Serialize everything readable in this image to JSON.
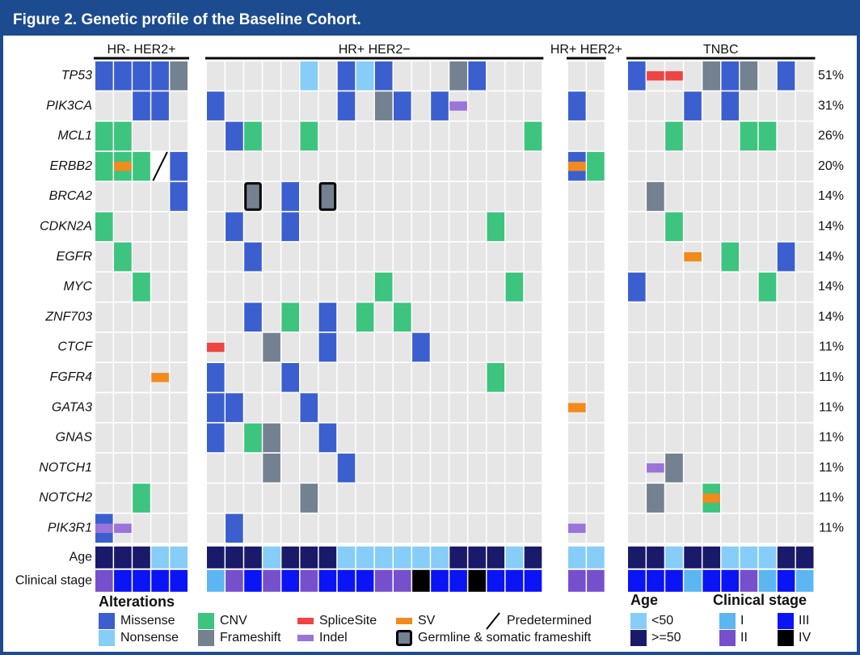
{
  "chart_data": {
    "type": "oncoprint",
    "title": "Figure 2. Genetic profile of the Baseline Cohort.",
    "genes": [
      "TP53",
      "PIK3CA",
      "MCL1",
      "ERBB2",
      "BRCA2",
      "CDKN2A",
      "EGFR",
      "MYC",
      "ZNF703",
      "CTCF",
      "FGFR4",
      "GATA3",
      "GNAS",
      "NOTCH1",
      "NOTCH2",
      "PIK3R1"
    ],
    "values": [
      51,
      31,
      26,
      20,
      14,
      14,
      14,
      14,
      14,
      11,
      11,
      11,
      11,
      11,
      11,
      11
    ],
    "value_labels": [
      "51%",
      "31%",
      "26%",
      "20%",
      "14%",
      "14%",
      "14%",
      "14%",
      "14%",
      "11%",
      "11%",
      "11%",
      "11%",
      "11%",
      "11%",
      "11%"
    ],
    "age_label": "Age",
    "stage_label": "Clinical stage",
    "groups": [
      {
        "name": "HR- HER2+",
        "age": [
          ">=50",
          ">=50",
          ">=50",
          "<50",
          "<50"
        ],
        "stage": [
          "II",
          "III",
          "III",
          "III",
          "III"
        ],
        "alterations": [
          [
            "Missense",
            "Missense",
            "Missense",
            "Missense",
            "Frameshift"
          ],
          [
            null,
            null,
            "Missense",
            "Missense",
            null
          ],
          [
            "CNV",
            "CNV",
            null,
            null,
            null
          ],
          [
            "CNV",
            [
              "CNV",
              "SV"
            ],
            "CNV",
            "Predetermined",
            "Missense"
          ],
          [
            null,
            null,
            null,
            null,
            "Missense"
          ],
          [
            "CNV",
            null,
            null,
            null,
            null
          ],
          [
            null,
            "CNV",
            null,
            null,
            null
          ],
          [
            null,
            null,
            "CNV",
            null,
            null
          ],
          [
            null,
            null,
            null,
            null,
            null
          ],
          [
            null,
            null,
            null,
            null,
            null
          ],
          [
            null,
            null,
            null,
            "SV",
            null
          ],
          [
            null,
            null,
            null,
            null,
            null
          ],
          [
            null,
            null,
            null,
            null,
            null
          ],
          [
            null,
            null,
            null,
            null,
            null
          ],
          [
            null,
            null,
            "CNV",
            null,
            null
          ],
          [
            [
              "Missense",
              "Indel"
            ],
            "Indel",
            null,
            null,
            null
          ]
        ]
      },
      {
        "name": "HR+ HER2−",
        "age": [
          ">=50",
          ">=50",
          ">=50",
          "<50",
          ">=50",
          ">=50",
          ">=50",
          "<50",
          "<50",
          "<50",
          "<50",
          "<50",
          "<50",
          ">=50",
          ">=50",
          ">=50",
          "<50",
          ">=50"
        ],
        "stage": [
          "I",
          "II",
          "III",
          "II",
          "III",
          "II",
          "III",
          "III",
          "III",
          "II",
          "II",
          "IV",
          "III",
          "III",
          "IV",
          "III",
          "III",
          "III"
        ],
        "alterations": [
          [
            null,
            null,
            null,
            null,
            null,
            "Nonsense",
            null,
            "Missense",
            "Nonsense",
            "Missense",
            null,
            null,
            null,
            "Frameshift",
            "Missense",
            null,
            null,
            null
          ],
          [
            "Missense",
            null,
            null,
            null,
            null,
            null,
            null,
            "Missense",
            null,
            "Frameshift",
            "Missense",
            null,
            "Missense",
            "Indel",
            null,
            null,
            null,
            null
          ],
          [
            null,
            "Missense",
            "CNV",
            null,
            null,
            "CNV",
            null,
            null,
            null,
            null,
            null,
            null,
            null,
            null,
            null,
            null,
            null,
            "CNV"
          ],
          [
            null,
            null,
            null,
            null,
            null,
            null,
            null,
            null,
            null,
            null,
            null,
            null,
            null,
            null,
            null,
            null,
            null,
            null
          ],
          [
            null,
            null,
            "Germline & somatic frameshift",
            null,
            "Missense",
            null,
            "Germline & somatic frameshift",
            null,
            null,
            null,
            null,
            null,
            null,
            null,
            null,
            null,
            null,
            null
          ],
          [
            null,
            "Missense",
            null,
            null,
            "Missense",
            null,
            null,
            null,
            null,
            null,
            null,
            null,
            null,
            null,
            null,
            "CNV",
            null,
            null
          ],
          [
            null,
            null,
            "Missense",
            null,
            null,
            null,
            null,
            null,
            null,
            null,
            null,
            null,
            null,
            null,
            null,
            null,
            null,
            null
          ],
          [
            null,
            null,
            null,
            null,
            null,
            null,
            null,
            null,
            null,
            "CNV",
            null,
            null,
            null,
            null,
            null,
            null,
            "CNV",
            null
          ],
          [
            null,
            null,
            "Missense",
            null,
            "CNV",
            null,
            "Missense",
            null,
            "CNV",
            null,
            "CNV",
            null,
            null,
            null,
            null,
            null,
            null,
            null
          ],
          [
            "SpliceSite",
            null,
            null,
            "Frameshift",
            null,
            null,
            "Missense",
            null,
            null,
            null,
            null,
            "Missense",
            null,
            null,
            null,
            null,
            null,
            null
          ],
          [
            "Missense",
            null,
            null,
            null,
            "Missense",
            null,
            null,
            null,
            null,
            null,
            null,
            null,
            null,
            null,
            null,
            "CNV",
            null,
            null
          ],
          [
            "Missense",
            "Missense",
            null,
            null,
            null,
            "Missense",
            null,
            null,
            null,
            null,
            null,
            null,
            null,
            null,
            null,
            null,
            null,
            null
          ],
          [
            "Missense",
            null,
            "CNV",
            "Frameshift",
            null,
            null,
            "Missense",
            null,
            null,
            null,
            null,
            null,
            null,
            null,
            null,
            null,
            null,
            null
          ],
          [
            null,
            null,
            null,
            "Frameshift",
            null,
            null,
            null,
            "Missense",
            null,
            null,
            null,
            null,
            null,
            null,
            null,
            null,
            null,
            null
          ],
          [
            null,
            null,
            null,
            null,
            null,
            "Frameshift",
            null,
            null,
            null,
            null,
            null,
            null,
            null,
            null,
            null,
            null,
            null,
            null
          ],
          [
            null,
            "Missense",
            null,
            null,
            null,
            null,
            null,
            null,
            null,
            null,
            null,
            null,
            null,
            null,
            null,
            null,
            null,
            null
          ]
        ]
      },
      {
        "name": "HR+ HER2+",
        "age": [
          "<50",
          "<50"
        ],
        "stage": [
          "II",
          "II"
        ],
        "alterations": [
          [
            null,
            null
          ],
          [
            "Missense",
            null
          ],
          [
            null,
            null
          ],
          [
            [
              "Missense",
              "SV"
            ],
            "CNV"
          ],
          [
            null,
            null
          ],
          [
            null,
            null
          ],
          [
            null,
            null
          ],
          [
            null,
            null
          ],
          [
            null,
            null
          ],
          [
            null,
            null
          ],
          [
            null,
            null
          ],
          [
            "SV",
            null
          ],
          [
            null,
            null
          ],
          [
            null,
            null
          ],
          [
            null,
            null
          ],
          [
            "Indel",
            null
          ]
        ]
      },
      {
        "name": "TNBC",
        "age": [
          ">=50",
          ">=50",
          "<50",
          ">=50",
          ">=50",
          "<50",
          "<50",
          "<50",
          ">=50",
          ">=50"
        ],
        "stage": [
          "III",
          "III",
          "III",
          "I",
          "III",
          "III",
          "II",
          "I",
          "III",
          "I"
        ],
        "alterations": [
          [
            "Missense",
            "SpliceSite",
            "SpliceSite",
            null,
            "Frameshift",
            "Missense",
            "Frameshift",
            null,
            "Missense",
            null
          ],
          [
            null,
            null,
            null,
            "Missense",
            null,
            "Missense",
            null,
            null,
            null,
            null
          ],
          [
            null,
            null,
            "CNV",
            null,
            null,
            null,
            "CNV",
            "CNV",
            null,
            null
          ],
          [
            null,
            null,
            null,
            null,
            null,
            null,
            null,
            null,
            null,
            null
          ],
          [
            null,
            "Frameshift",
            null,
            null,
            null,
            null,
            null,
            null,
            null,
            null
          ],
          [
            null,
            null,
            "CNV",
            null,
            null,
            null,
            null,
            null,
            null,
            null
          ],
          [
            null,
            null,
            null,
            "SV",
            null,
            "CNV",
            null,
            null,
            "Missense",
            null
          ],
          [
            "Missense",
            null,
            null,
            null,
            null,
            null,
            null,
            "CNV",
            null,
            null
          ],
          [
            null,
            null,
            null,
            null,
            null,
            null,
            null,
            null,
            null,
            null
          ],
          [
            null,
            null,
            null,
            null,
            null,
            null,
            null,
            null,
            null,
            null
          ],
          [
            null,
            null,
            null,
            null,
            null,
            null,
            null,
            null,
            null,
            null
          ],
          [
            null,
            null,
            null,
            null,
            null,
            null,
            null,
            null,
            null,
            null
          ],
          [
            null,
            null,
            null,
            null,
            null,
            null,
            null,
            null,
            null,
            null
          ],
          [
            null,
            "Indel",
            "Frameshift",
            null,
            null,
            null,
            null,
            null,
            null,
            null
          ],
          [
            null,
            "Frameshift",
            null,
            null,
            [
              "CNV",
              "SV"
            ],
            null,
            null,
            null,
            null,
            null
          ],
          [
            null,
            null,
            null,
            null,
            null,
            null,
            null,
            null,
            null,
            null
          ]
        ]
      }
    ],
    "legend": {
      "alterations": {
        "title": "Alterations",
        "items": [
          {
            "name": "Missense",
            "color": "#3b5fcf",
            "shape": "fill"
          },
          {
            "name": "Nonsense",
            "color": "#86cdf7",
            "shape": "fill"
          },
          {
            "name": "CNV",
            "color": "#3dc47e",
            "shape": "fill"
          },
          {
            "name": "Frameshift",
            "color": "#738190",
            "shape": "fill"
          },
          {
            "name": "SpliceSite",
            "color": "#ee4444",
            "shape": "bar"
          },
          {
            "name": "Indel",
            "color": "#9a74d9",
            "shape": "bar"
          },
          {
            "name": "SV",
            "color": "#f28a1c",
            "shape": "bar"
          },
          {
            "name": "Germline & somatic frameshift",
            "color": "#738190",
            "shape": "outline"
          },
          {
            "name": "Predetermined",
            "color": "#000000",
            "shape": "slash"
          }
        ]
      },
      "age": {
        "title": "Age",
        "items": [
          {
            "name": "<50",
            "color": "#86cdf7"
          },
          {
            "name": ">=50",
            "color": "#1a1a6b"
          }
        ]
      },
      "stage": {
        "title": "Clinical stage",
        "items": [
          {
            "name": "I",
            "color": "#5cb6f2"
          },
          {
            "name": "II",
            "color": "#7650cc"
          },
          {
            "name": "III",
            "color": "#0b14f5"
          },
          {
            "name": "IV",
            "color": "#000000"
          }
        ]
      }
    }
  }
}
